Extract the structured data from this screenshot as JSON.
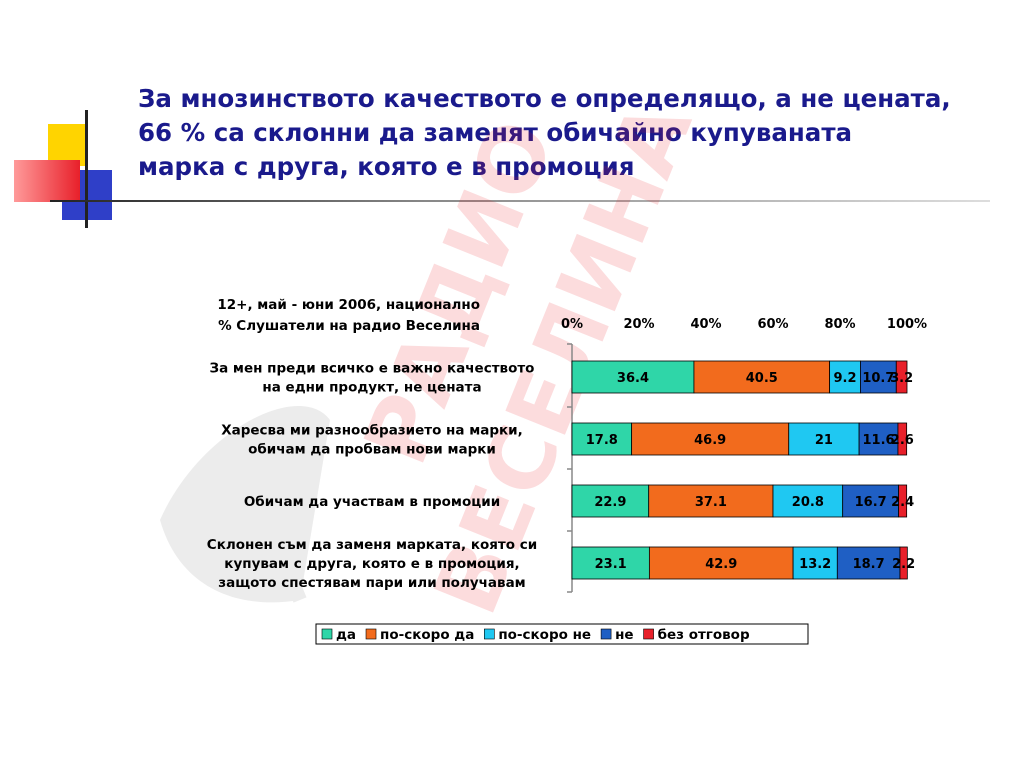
{
  "slide": {
    "title_lines": [
      "За мнозинството качеството е определящо, а не цената,",
      "66 % са склонни да заменят обичайно купуваната",
      "марка с друга, която е в промоция"
    ]
  },
  "chart_data": {
    "type": "bar",
    "orientation": "horizontal",
    "stacked": "percent",
    "title_lines": [
      "12+, май - юни 2006, национално",
      "% Слушатели на радио Веселина"
    ],
    "xlim": [
      0,
      100
    ],
    "x_ticks": [
      "0%",
      "20%",
      "40%",
      "60%",
      "80%",
      "100%"
    ],
    "categories": [
      [
        "За мен преди всичко е важно качеството",
        "на едни продукт, не цената"
      ],
      [
        "Харесва ми разнообразието на марки,",
        "обичам да пробвам нови марки"
      ],
      [
        "Обичам да участвам в промоции"
      ],
      [
        "Склонен съм да заменя марката, която си",
        "купувам с друга, която е в промоция,",
        "защото спестявам пари или получавам"
      ]
    ],
    "series": [
      {
        "name": "да",
        "color": "#2fd6a8",
        "values": [
          36.4,
          17.8,
          22.9,
          23.1
        ]
      },
      {
        "name": "по-скоро да",
        "color": "#f26b1d",
        "values": [
          40.5,
          46.9,
          37.1,
          42.9
        ]
      },
      {
        "name": "по-скоро не",
        "color": "#1fc8f2",
        "values": [
          9.2,
          21,
          20.8,
          13.2
        ]
      },
      {
        "name": "не",
        "color": "#1f5fc4",
        "values": [
          10.7,
          11.6,
          16.7,
          18.7
        ]
      },
      {
        "name": "без отговор",
        "color": "#e8202a",
        "values": [
          3.2,
          2.6,
          2.4,
          2.2
        ]
      }
    ],
    "legend_position": "bottom",
    "grid": false
  }
}
